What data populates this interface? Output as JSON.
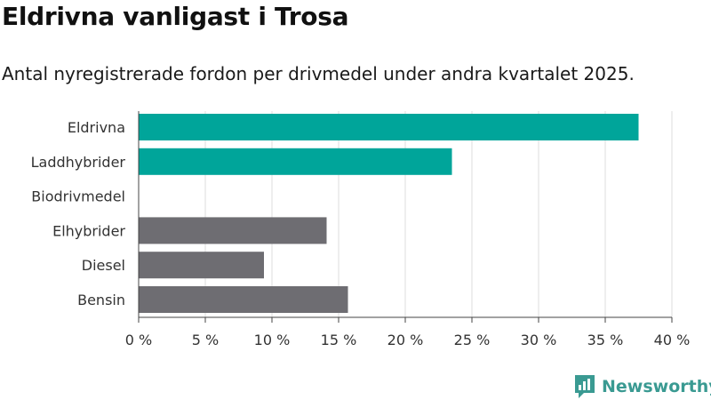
{
  "title": "Eldrivna vanligast i Trosa",
  "subtitle": "Antal nyregistrerade fordon per drivmedel under andra kvartalet 2025.",
  "brand": {
    "name": "Newsworthy",
    "color": "#3a9a92"
  },
  "colors": {
    "highlight": "#00a59a",
    "other": "#6e6d72",
    "grid": "#dddddd"
  },
  "chart_data": {
    "type": "bar",
    "orientation": "horizontal",
    "categories": [
      "Eldrivna",
      "Laddhybrider",
      "Biodrivmedel",
      "Elhybrider",
      "Diesel",
      "Bensin"
    ],
    "values": [
      37.5,
      23.5,
      0,
      14.1,
      9.4,
      15.7
    ],
    "bar_colors": [
      "#00a59a",
      "#00a59a",
      "#6e6d72",
      "#6e6d72",
      "#6e6d72",
      "#6e6d72"
    ],
    "xlim": [
      0,
      40
    ],
    "xticks": [
      0,
      5,
      10,
      15,
      20,
      25,
      30,
      35,
      40
    ],
    "xtick_labels": [
      "0 %",
      "5 %",
      "10 %",
      "15 %",
      "20 %",
      "25 %",
      "30 %",
      "35 %",
      "40 %"
    ],
    "grid": true,
    "legend": "none"
  }
}
